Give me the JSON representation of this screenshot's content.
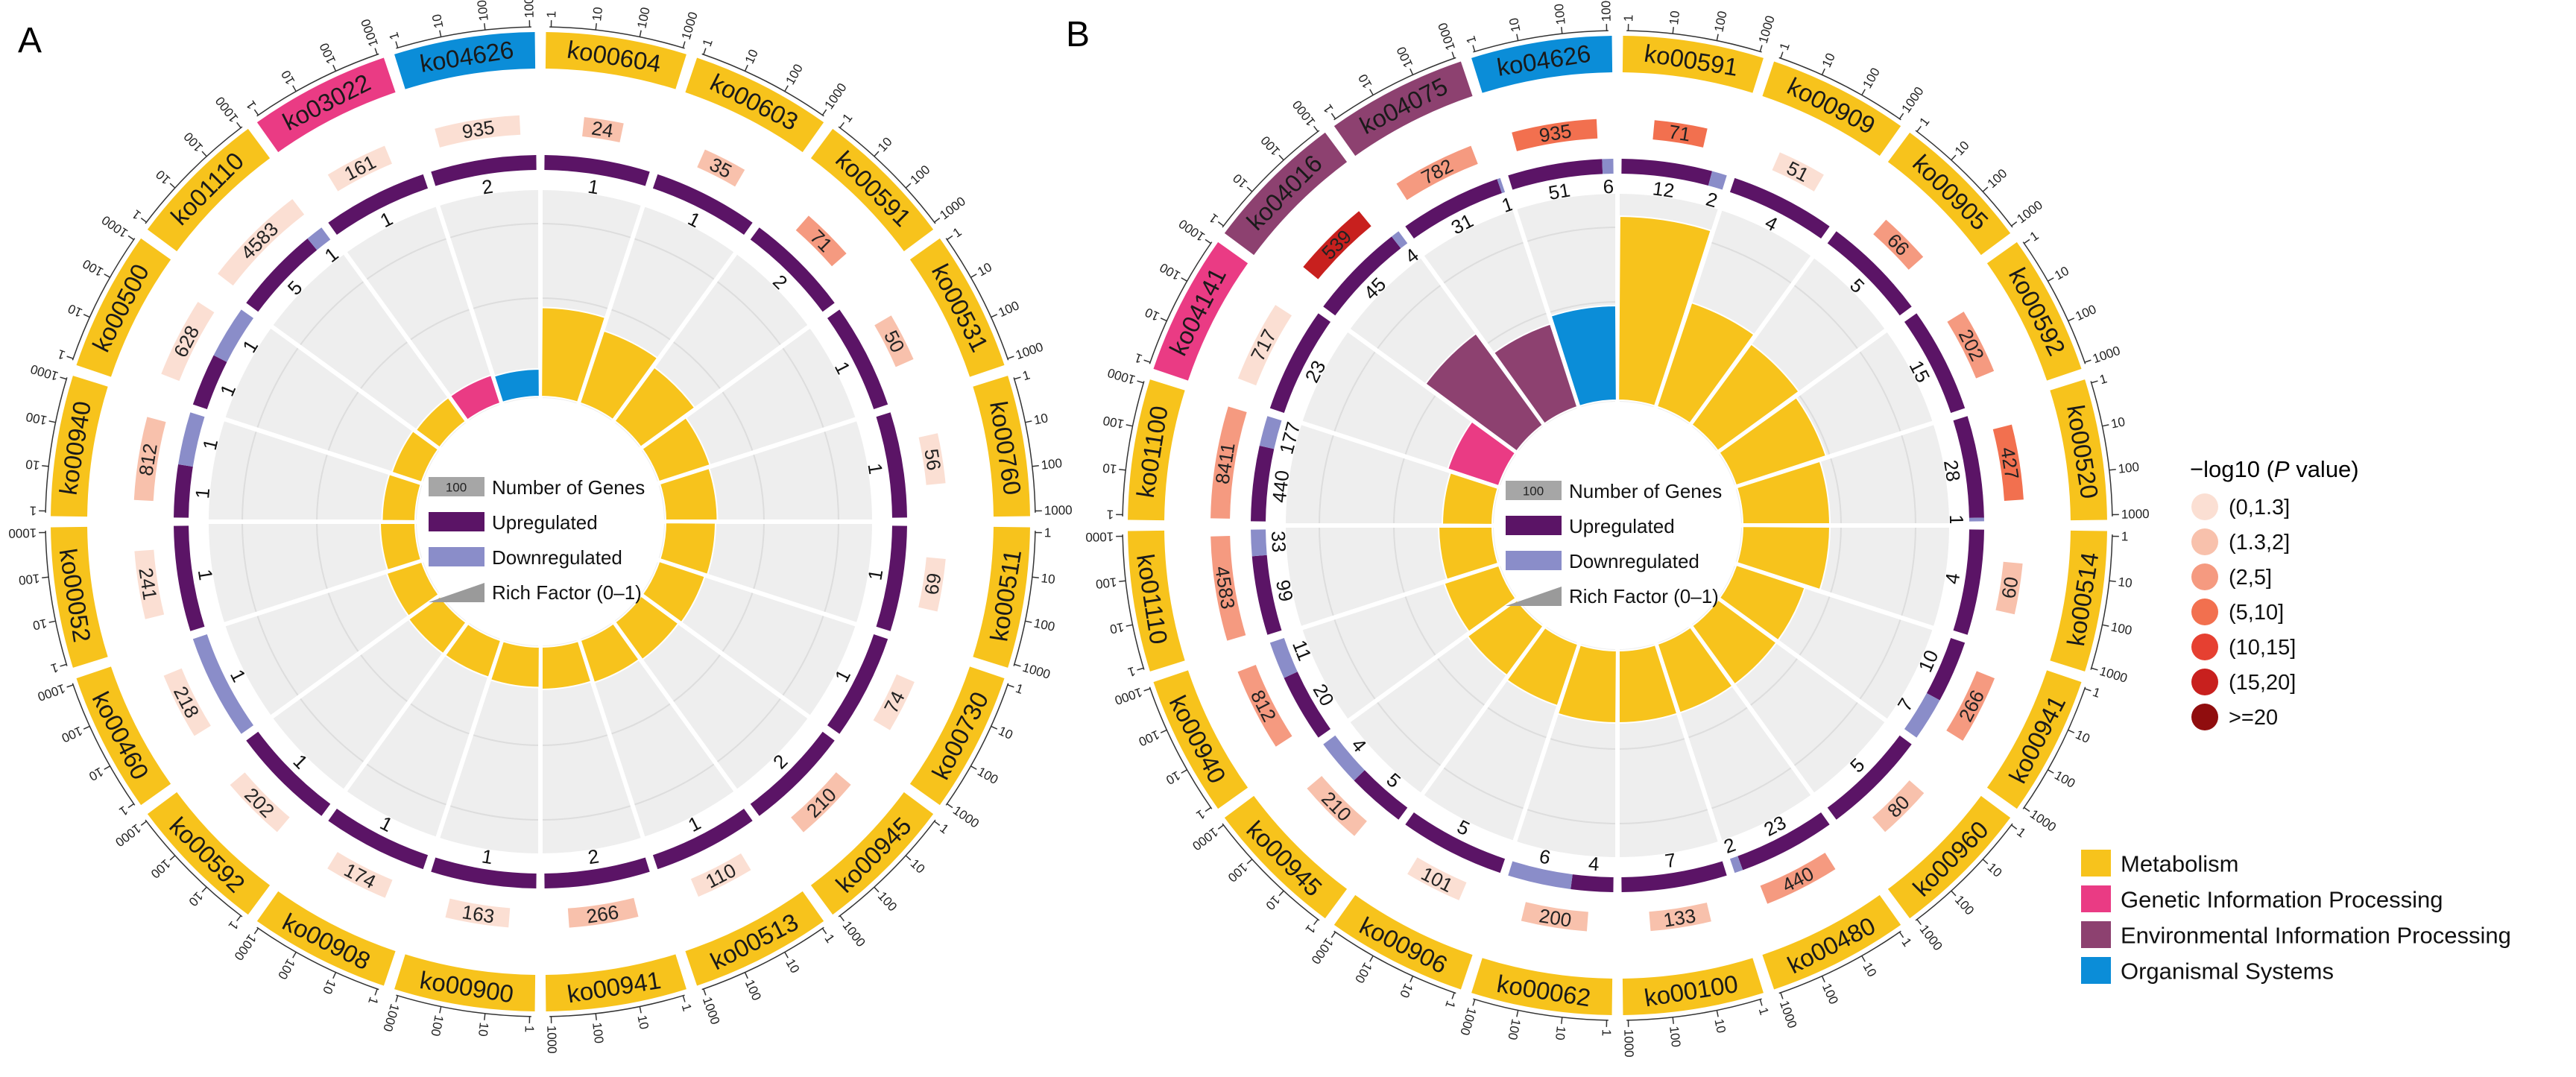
{
  "chart_data": [
    {
      "panel_label": "A",
      "type": "circos",
      "sectors": [
        {
          "id": "ko00604",
          "category": "Metabolism",
          "genes": 24,
          "pval_bin": "(1.3,2]",
          "up": 1,
          "down": 0,
          "rich": 0.39
        },
        {
          "id": "ko00603",
          "category": "Metabolism",
          "genes": 35,
          "pval_bin": "(1.3,2]",
          "up": 1,
          "down": 0,
          "rich": 0.32
        },
        {
          "id": "ko00591",
          "category": "Metabolism",
          "genes": 71,
          "pval_bin": "(2,5]",
          "up": 2,
          "down": 0,
          "rich": 0.27
        },
        {
          "id": "ko00531",
          "category": "Metabolism",
          "genes": 50,
          "pval_bin": "(1.3,2]",
          "up": 1,
          "down": 0,
          "rich": 0.2
        },
        {
          "id": "ko00760",
          "category": "Metabolism",
          "genes": 56,
          "pval_bin": "(0,1.3]",
          "up": 1,
          "down": 0,
          "rich": 0.19
        },
        {
          "id": "ko00511",
          "category": "Metabolism",
          "genes": 69,
          "pval_bin": "(0,1.3]",
          "up": 1,
          "down": 0,
          "rich": 0.18
        },
        {
          "id": "ko00730",
          "category": "Metabolism",
          "genes": 74,
          "pval_bin": "(0,1.3]",
          "up": 1,
          "down": 0,
          "rich": 0.17
        },
        {
          "id": "ko00945",
          "category": "Metabolism",
          "genes": 210,
          "pval_bin": "(1.3,2]",
          "up": 2,
          "down": 0,
          "rich": 0.16
        },
        {
          "id": "ko00513",
          "category": "Metabolism",
          "genes": 110,
          "pval_bin": "(0,1.3]",
          "up": 1,
          "down": 0,
          "rich": 0.15
        },
        {
          "id": "ko00941",
          "category": "Metabolism",
          "genes": 266,
          "pval_bin": "(1.3,2]",
          "up": 2,
          "down": 0,
          "rich": 0.14
        },
        {
          "id": "ko00900",
          "category": "Metabolism",
          "genes": 163,
          "pval_bin": "(0,1.3]",
          "up": 1,
          "down": 0,
          "rich": 0.13
        },
        {
          "id": "ko00908",
          "category": "Metabolism",
          "genes": 174,
          "pval_bin": "(0,1.3]",
          "up": 1,
          "down": 0,
          "rich": 0.12
        },
        {
          "id": "ko00592",
          "category": "Metabolism",
          "genes": 202,
          "pval_bin": "(0,1.3]",
          "up": 1,
          "down": 0,
          "rich": 0.12
        },
        {
          "id": "ko00460",
          "category": "Metabolism",
          "genes": 218,
          "pval_bin": "(0,1.3]",
          "up": 0,
          "down": 1,
          "rich": 0.11
        },
        {
          "id": "ko00052",
          "category": "Metabolism",
          "genes": 241,
          "pval_bin": "(0,1.3]",
          "up": 1,
          "down": 0,
          "rich": 0.1
        },
        {
          "id": "ko00940",
          "category": "Metabolism",
          "genes": 812,
          "pval_bin": "(1.3,2]",
          "up": 1,
          "down": 1,
          "rich": 0.09
        },
        {
          "id": "ko00500",
          "category": "Metabolism",
          "genes": 628,
          "pval_bin": "(0,1.3]",
          "up": 1,
          "down": 1,
          "rich": 0.08
        },
        {
          "id": "ko01110",
          "category": "Metabolism",
          "genes": 4583,
          "pval_bin": "(0,1.3]",
          "up": 5,
          "down": 1,
          "rich": 0.07
        },
        {
          "id": "ko03022",
          "category": "Genetic Information Processing",
          "genes": 161,
          "pval_bin": "(0,1.3]",
          "up": 1,
          "down": 0,
          "rich": 0.07
        },
        {
          "id": "ko04626",
          "category": "Organismal Systems",
          "genes": 935,
          "pval_bin": "(0,1.3]",
          "up": 2,
          "down": 0,
          "rich": 0.06
        }
      ]
    },
    {
      "panel_label": "B",
      "type": "circos",
      "sectors": [
        {
          "id": "ko00591",
          "category": "Metabolism",
          "genes": 71,
          "pval_bin": "(5,10]",
          "up": 12,
          "down": 2,
          "rich": 0.9
        },
        {
          "id": "ko00909",
          "category": "Metabolism",
          "genes": 51,
          "pval_bin": "(0,1.3]",
          "up": 4,
          "down": 0,
          "rich": 0.5
        },
        {
          "id": "ko00905",
          "category": "Metabolism",
          "genes": 66,
          "pval_bin": "(2,5]",
          "up": 5,
          "down": 0,
          "rich": 0.45
        },
        {
          "id": "ko00592",
          "category": "Metabolism",
          "genes": 202,
          "pval_bin": "(2,5]",
          "up": 15,
          "down": 0,
          "rich": 0.42
        },
        {
          "id": "ko00520",
          "category": "Metabolism",
          "genes": 427,
          "pval_bin": "(5,10]",
          "up": 28,
          "down": 1,
          "rich": 0.38
        },
        {
          "id": "ko00514",
          "category": "Metabolism",
          "genes": 60,
          "pval_bin": "(1.3,2]",
          "up": 4,
          "down": 0,
          "rich": 0.38
        },
        {
          "id": "ko00941",
          "category": "Metabolism",
          "genes": 266,
          "pval_bin": "(2,5]",
          "up": 10,
          "down": 7,
          "rich": 0.3
        },
        {
          "id": "ko00960",
          "category": "Metabolism",
          "genes": 80,
          "pval_bin": "(1.3,2]",
          "up": 5,
          "down": 0,
          "rich": 0.3
        },
        {
          "id": "ko00480",
          "category": "Metabolism",
          "genes": 440,
          "pval_bin": "(2,5]",
          "up": 23,
          "down": 2,
          "rich": 0.3
        },
        {
          "id": "ko00100",
          "category": "Metabolism",
          "genes": 133,
          "pval_bin": "(1.3,2]",
          "up": 7,
          "down": 0,
          "rich": 0.3
        },
        {
          "id": "ko00062",
          "category": "Metabolism",
          "genes": 200,
          "pval_bin": "(1.3,2]",
          "up": 4,
          "down": 6,
          "rich": 0.3
        },
        {
          "id": "ko00906",
          "category": "Metabolism",
          "genes": 101,
          "pval_bin": "(0,1.3]",
          "up": 5,
          "down": 0,
          "rich": 0.26
        },
        {
          "id": "ko00945",
          "category": "Metabolism",
          "genes": 210,
          "pval_bin": "(1.3,2]",
          "up": 5,
          "down": 4,
          "rich": 0.24
        },
        {
          "id": "ko00940",
          "category": "Metabolism",
          "genes": 812,
          "pval_bin": "(2,5]",
          "up": 20,
          "down": 11,
          "rich": 0.22
        },
        {
          "id": "ko01110",
          "category": "Metabolism",
          "genes": 4583,
          "pval_bin": "(2,5]",
          "up": 99,
          "down": 33,
          "rich": 0.2
        },
        {
          "id": "ko01100",
          "category": "Metabolism",
          "genes": 8411,
          "pval_bin": "(2,5]",
          "up": 440,
          "down": 177,
          "rich": 0.18
        },
        {
          "id": "ko04141",
          "category": "Genetic Information Processing",
          "genes": 717,
          "pval_bin": "(0,1.3]",
          "up": 23,
          "down": 0,
          "rich": 0.2
        },
        {
          "id": "ko04016",
          "category": "Environmental Information Processing",
          "genes": 539,
          "pval_bin": "(15,20]",
          "up": 45,
          "down": 4,
          "rich": 0.52
        },
        {
          "id": "ko04075",
          "category": "Environmental Information Processing",
          "genes": 782,
          "pval_bin": "(2,5]",
          "up": 31,
          "down": 1,
          "rich": 0.38
        },
        {
          "id": "ko04626",
          "category": "Organismal Systems",
          "genes": 935,
          "pval_bin": "(5,10]",
          "up": 51,
          "down": 6,
          "rich": 0.42
        }
      ]
    }
  ],
  "colors": {
    "Metabolism": "#f7c31c",
    "Genetic Information Processing": "#ea3b84",
    "Environmental Information Processing": "#8d4170",
    "Organismal Systems": "#0b8dd8",
    "up": "#5b1466",
    "down": "#8a8dc9",
    "genes_key": "#a6a6a6",
    "rich_key": "#9a9a9a",
    "pval_bins": [
      "#fbdfd3",
      "#f8c1ac",
      "#f59a80",
      "#f2704f",
      "#e64031",
      "#c8201e",
      "#900d0e"
    ]
  },
  "tick_labels": [
    "1",
    "10",
    "100",
    "1000"
  ],
  "inner_legend": {
    "genes_value": "100",
    "items": [
      "Number of Genes",
      "Upregulated",
      "Downregulated",
      "Rich Factor (0–1)"
    ]
  },
  "pval_legend": {
    "title_prefix": "−log10 (",
    "title_italic": "P",
    "title_suffix": " value)",
    "items": [
      "(0,1.3]",
      "(1.3,2]",
      "(2,5]",
      "(5,10]",
      "(10,15]",
      "(15,20]",
      ">=20"
    ]
  },
  "category_legend": [
    "Metabolism",
    "Genetic Information Processing",
    "Environmental Information Processing",
    "Organismal Systems"
  ]
}
